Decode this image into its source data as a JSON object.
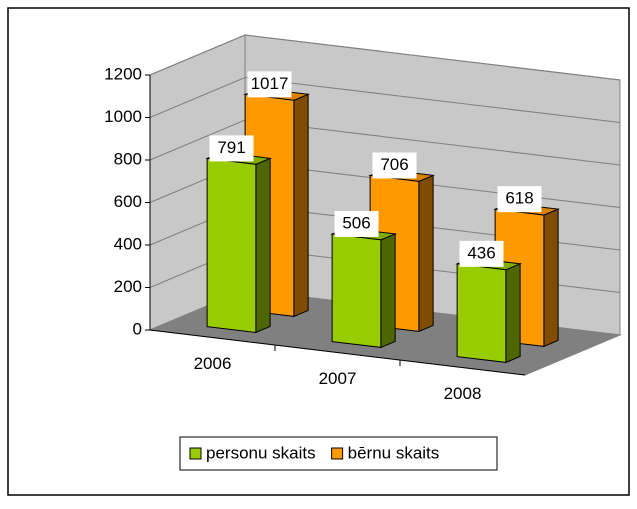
{
  "chart_data": {
    "type": "bar",
    "categories": [
      "2006",
      "2007",
      "2008"
    ],
    "series": [
      {
        "name": "personu skaits",
        "color": "#99cc00",
        "values": [
          791,
          506,
          436
        ]
      },
      {
        "name": "bērnu skaits",
        "color": "#ff9900",
        "values": [
          1017,
          706,
          618
        ]
      }
    ],
    "ylim": [
      0,
      1200
    ],
    "yticks": [
      0,
      200,
      400,
      600,
      800,
      1000,
      1200
    ],
    "grid": true,
    "legend": "bottom"
  }
}
